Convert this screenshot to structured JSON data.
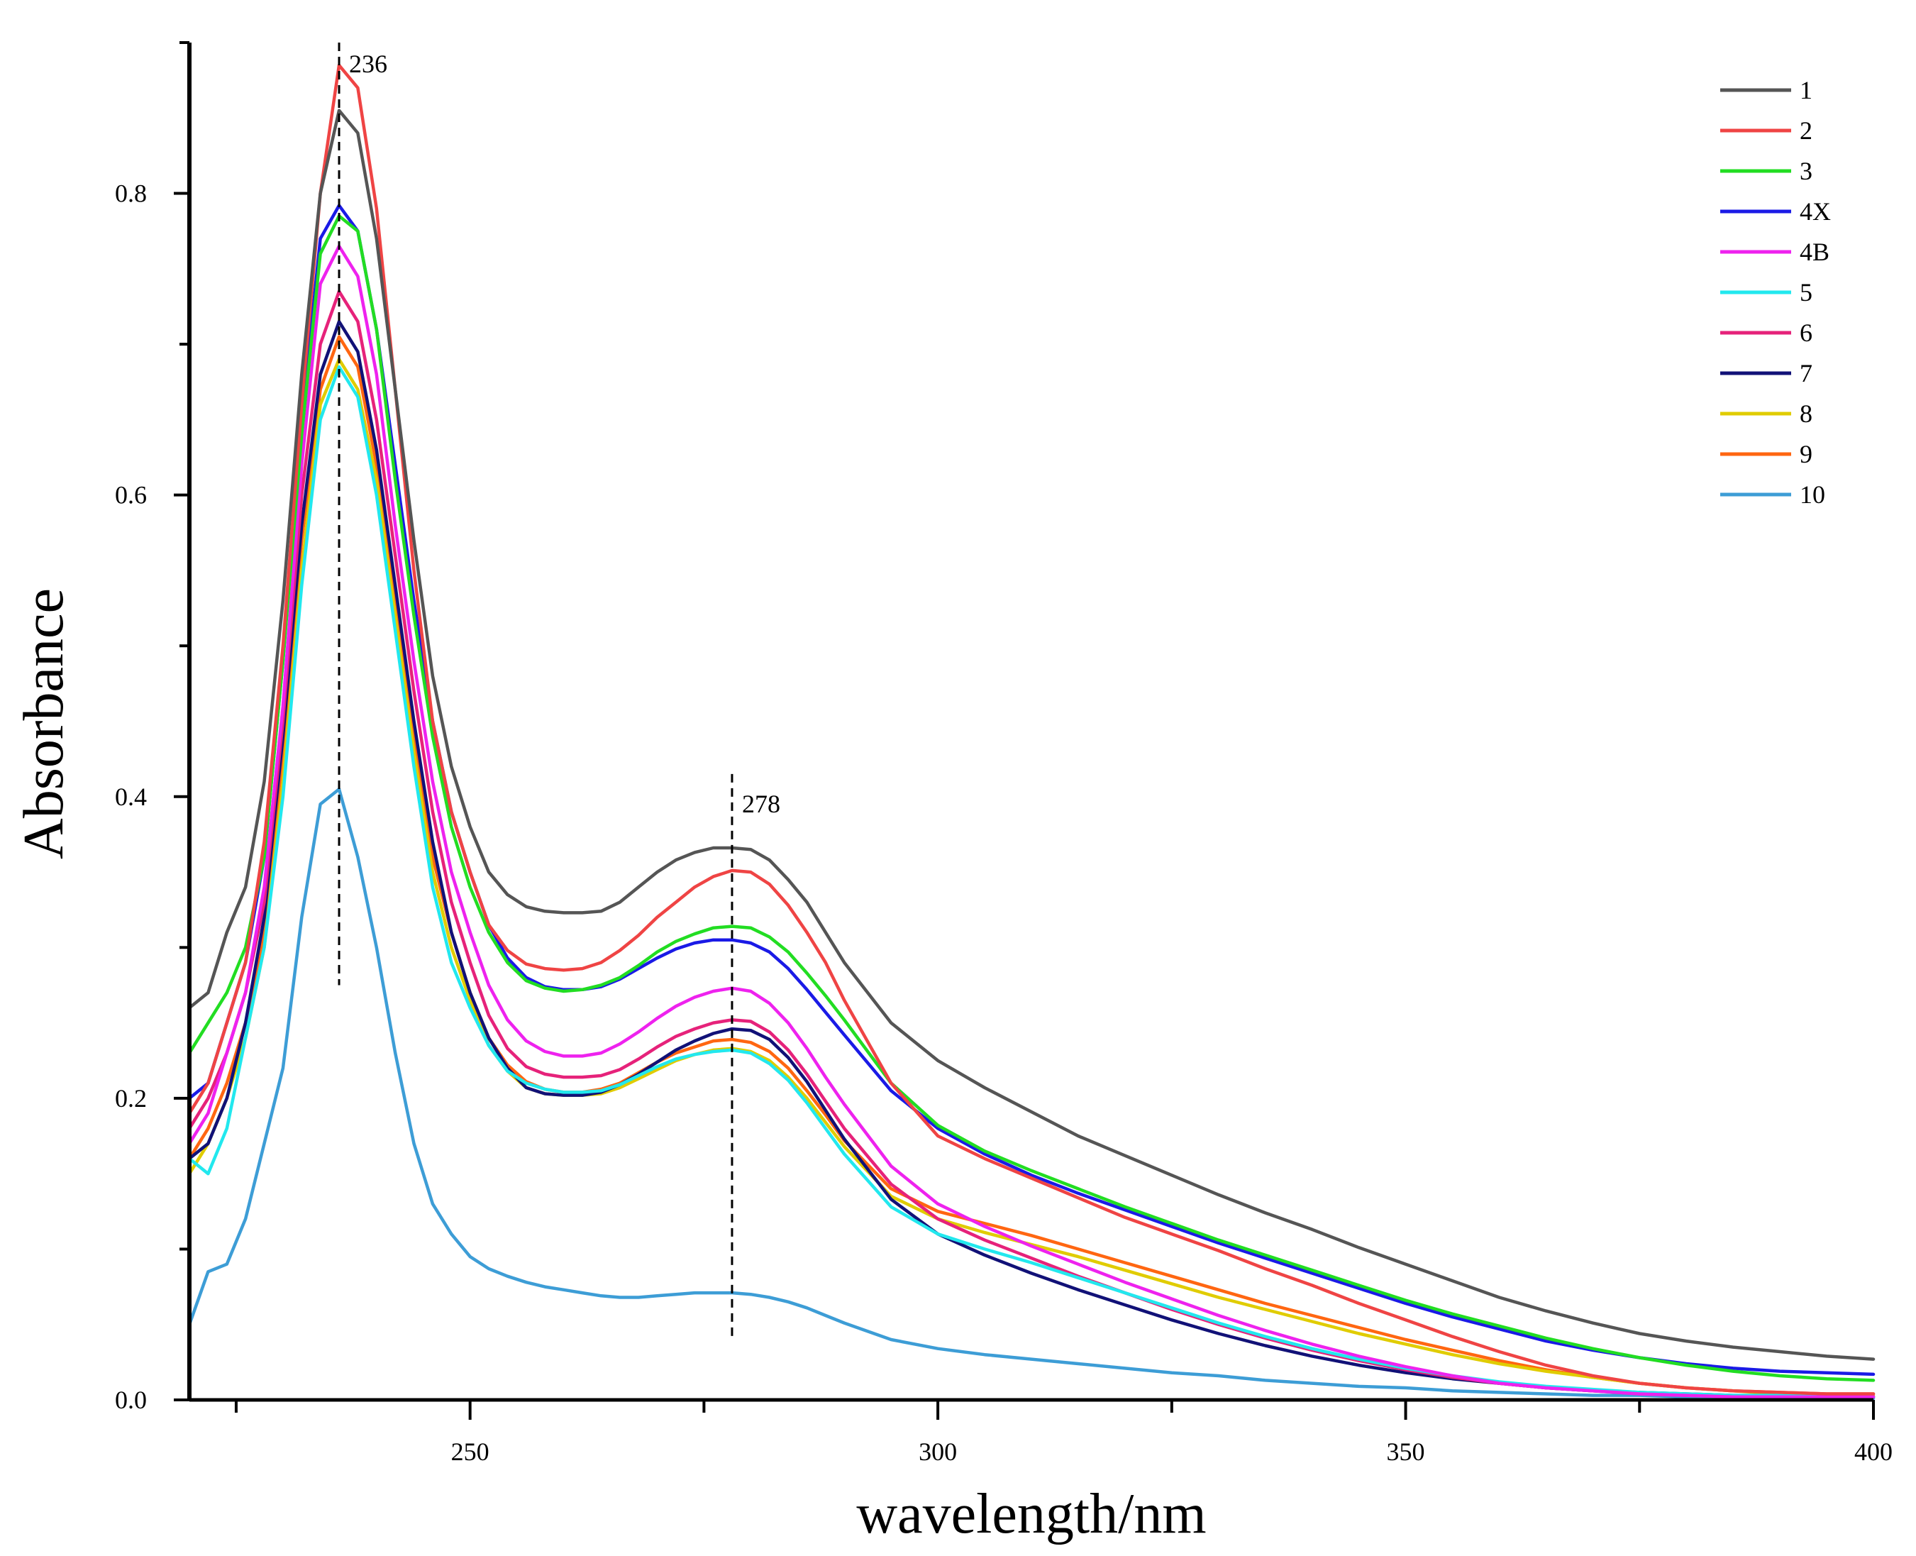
{
  "chart_data": {
    "type": "line",
    "title": "",
    "xlabel": "wavelength/nm",
    "ylabel": "Absorbance",
    "xlim": [
      220,
      400
    ],
    "ylim": [
      0,
      0.9
    ],
    "x_ticks": [
      250,
      300,
      350,
      400
    ],
    "y_ticks": [
      0.0,
      0.2,
      0.4,
      0.6,
      0.8
    ],
    "x_tick_labels": [
      "250",
      "300",
      "350",
      "400"
    ],
    "y_tick_labels": [
      "0.0",
      "0.2",
      "0.4",
      "0.6",
      "0.8"
    ],
    "grid": false,
    "legend_position": "top-right",
    "annotations": [
      {
        "label": "236",
        "x": 236,
        "y_from": 0.275,
        "y_to": 0.9
      },
      {
        "label": "278",
        "x": 278,
        "y_from": 0.04,
        "y_to": 0.415
      }
    ],
    "x": [
      220,
      222,
      224,
      226,
      228,
      230,
      232,
      234,
      236,
      238,
      240,
      242,
      244,
      246,
      248,
      250,
      252,
      254,
      256,
      258,
      260,
      262,
      264,
      266,
      268,
      270,
      272,
      274,
      276,
      278,
      280,
      282,
      284,
      286,
      288,
      290,
      295,
      300,
      305,
      310,
      315,
      320,
      325,
      330,
      335,
      340,
      345,
      350,
      355,
      360,
      365,
      370,
      375,
      380,
      385,
      390,
      395,
      400
    ],
    "series": [
      {
        "name": "1",
        "color": "#555555",
        "values": [
          0.26,
          0.27,
          0.31,
          0.34,
          0.41,
          0.53,
          0.68,
          0.8,
          0.855,
          0.84,
          0.77,
          0.67,
          0.57,
          0.48,
          0.42,
          0.38,
          0.35,
          0.335,
          0.327,
          0.324,
          0.323,
          0.323,
          0.324,
          0.33,
          0.34,
          0.35,
          0.358,
          0.363,
          0.366,
          0.366,
          0.365,
          0.358,
          0.345,
          0.33,
          0.31,
          0.29,
          0.25,
          0.225,
          0.207,
          0.191,
          0.175,
          0.162,
          0.149,
          0.136,
          0.124,
          0.113,
          0.101,
          0.09,
          0.079,
          0.068,
          0.059,
          0.051,
          0.044,
          0.039,
          0.035,
          0.032,
          0.029,
          0.027
        ]
      },
      {
        "name": "2",
        "color": "#ef4444",
        "values": [
          0.19,
          0.21,
          0.25,
          0.29,
          0.37,
          0.5,
          0.66,
          0.8,
          0.885,
          0.87,
          0.79,
          0.67,
          0.55,
          0.45,
          0.39,
          0.35,
          0.315,
          0.298,
          0.289,
          0.286,
          0.285,
          0.286,
          0.29,
          0.298,
          0.308,
          0.32,
          0.33,
          0.34,
          0.347,
          0.351,
          0.35,
          0.342,
          0.328,
          0.31,
          0.29,
          0.265,
          0.21,
          0.175,
          0.16,
          0.147,
          0.134,
          0.121,
          0.11,
          0.099,
          0.087,
          0.076,
          0.064,
          0.053,
          0.042,
          0.032,
          0.023,
          0.016,
          0.011,
          0.008,
          0.006,
          0.005,
          0.004,
          0.004
        ]
      },
      {
        "name": "3",
        "color": "#22dd22",
        "values": [
          0.23,
          0.25,
          0.27,
          0.3,
          0.36,
          0.49,
          0.64,
          0.76,
          0.785,
          0.775,
          0.71,
          0.61,
          0.52,
          0.44,
          0.38,
          0.34,
          0.31,
          0.29,
          0.278,
          0.273,
          0.271,
          0.272,
          0.275,
          0.28,
          0.288,
          0.297,
          0.304,
          0.309,
          0.313,
          0.314,
          0.313,
          0.307,
          0.297,
          0.283,
          0.268,
          0.252,
          0.21,
          0.182,
          0.165,
          0.152,
          0.14,
          0.128,
          0.117,
          0.106,
          0.096,
          0.086,
          0.076,
          0.066,
          0.057,
          0.049,
          0.041,
          0.034,
          0.028,
          0.023,
          0.019,
          0.016,
          0.014,
          0.013
        ]
      },
      {
        "name": "4X",
        "color": "#1a1ae6",
        "values": [
          0.2,
          0.21,
          0.25,
          0.29,
          0.36,
          0.49,
          0.65,
          0.77,
          0.792,
          0.775,
          0.71,
          0.62,
          0.53,
          0.45,
          0.39,
          0.35,
          0.315,
          0.293,
          0.28,
          0.274,
          0.272,
          0.272,
          0.274,
          0.279,
          0.286,
          0.293,
          0.299,
          0.303,
          0.305,
          0.305,
          0.303,
          0.297,
          0.286,
          0.272,
          0.257,
          0.242,
          0.205,
          0.18,
          0.163,
          0.149,
          0.137,
          0.126,
          0.115,
          0.104,
          0.094,
          0.084,
          0.074,
          0.064,
          0.055,
          0.047,
          0.039,
          0.033,
          0.028,
          0.024,
          0.021,
          0.019,
          0.018,
          0.017
        ]
      },
      {
        "name": "4B",
        "color": "#ee22ee",
        "values": [
          0.17,
          0.19,
          0.23,
          0.27,
          0.34,
          0.46,
          0.62,
          0.74,
          0.765,
          0.745,
          0.68,
          0.58,
          0.49,
          0.41,
          0.35,
          0.31,
          0.275,
          0.252,
          0.238,
          0.231,
          0.228,
          0.228,
          0.23,
          0.236,
          0.244,
          0.253,
          0.261,
          0.267,
          0.271,
          0.273,
          0.271,
          0.263,
          0.25,
          0.233,
          0.214,
          0.196,
          0.155,
          0.13,
          0.115,
          0.102,
          0.09,
          0.078,
          0.067,
          0.056,
          0.046,
          0.037,
          0.029,
          0.022,
          0.016,
          0.011,
          0.008,
          0.006,
          0.004,
          0.003,
          0.002,
          0.002,
          0.002,
          0.002
        ]
      },
      {
        "name": "5",
        "color": "#22e8ee",
        "values": [
          0.16,
          0.15,
          0.18,
          0.24,
          0.3,
          0.4,
          0.54,
          0.65,
          0.685,
          0.665,
          0.6,
          0.51,
          0.42,
          0.34,
          0.29,
          0.26,
          0.235,
          0.218,
          0.21,
          0.206,
          0.204,
          0.204,
          0.205,
          0.209,
          0.215,
          0.221,
          0.226,
          0.229,
          0.231,
          0.232,
          0.23,
          0.223,
          0.212,
          0.197,
          0.18,
          0.163,
          0.128,
          0.11,
          0.1,
          0.091,
          0.081,
          0.071,
          0.061,
          0.051,
          0.042,
          0.034,
          0.027,
          0.021,
          0.016,
          0.012,
          0.009,
          0.007,
          0.005,
          0.004,
          0.003,
          0.003,
          0.002,
          0.002
        ]
      },
      {
        "name": "6",
        "color": "#e6227a",
        "values": [
          0.18,
          0.2,
          0.23,
          0.27,
          0.33,
          0.45,
          0.6,
          0.7,
          0.735,
          0.715,
          0.65,
          0.56,
          0.47,
          0.39,
          0.33,
          0.29,
          0.255,
          0.233,
          0.221,
          0.216,
          0.214,
          0.214,
          0.215,
          0.219,
          0.226,
          0.234,
          0.241,
          0.246,
          0.25,
          0.252,
          0.251,
          0.244,
          0.232,
          0.216,
          0.198,
          0.18,
          0.143,
          0.12,
          0.106,
          0.094,
          0.082,
          0.071,
          0.06,
          0.05,
          0.041,
          0.033,
          0.026,
          0.02,
          0.015,
          0.011,
          0.008,
          0.006,
          0.004,
          0.003,
          0.002,
          0.002,
          0.002,
          0.002
        ]
      },
      {
        "name": "7",
        "color": "#111177",
        "values": [
          0.16,
          0.17,
          0.2,
          0.25,
          0.32,
          0.44,
          0.58,
          0.68,
          0.715,
          0.695,
          0.63,
          0.54,
          0.45,
          0.37,
          0.31,
          0.27,
          0.24,
          0.22,
          0.207,
          0.203,
          0.202,
          0.202,
          0.204,
          0.209,
          0.216,
          0.224,
          0.232,
          0.238,
          0.243,
          0.246,
          0.245,
          0.239,
          0.227,
          0.211,
          0.192,
          0.173,
          0.133,
          0.11,
          0.096,
          0.084,
          0.073,
          0.063,
          0.053,
          0.044,
          0.036,
          0.029,
          0.023,
          0.018,
          0.014,
          0.011,
          0.008,
          0.006,
          0.005,
          0.004,
          0.003,
          0.003,
          0.002,
          0.002
        ]
      },
      {
        "name": "8",
        "color": "#e0cc00",
        "values": [
          0.15,
          0.17,
          0.2,
          0.24,
          0.3,
          0.41,
          0.55,
          0.66,
          0.69,
          0.67,
          0.61,
          0.52,
          0.43,
          0.35,
          0.3,
          0.265,
          0.235,
          0.218,
          0.207,
          0.203,
          0.202,
          0.202,
          0.203,
          0.207,
          0.213,
          0.219,
          0.225,
          0.229,
          0.232,
          0.233,
          0.231,
          0.225,
          0.214,
          0.2,
          0.184,
          0.168,
          0.135,
          0.12,
          0.111,
          0.103,
          0.095,
          0.086,
          0.077,
          0.068,
          0.06,
          0.052,
          0.044,
          0.037,
          0.03,
          0.024,
          0.019,
          0.015,
          0.011,
          0.008,
          0.006,
          0.004,
          0.003,
          0.003
        ]
      },
      {
        "name": "9",
        "color": "#ff6611",
        "values": [
          0.16,
          0.18,
          0.21,
          0.25,
          0.31,
          0.43,
          0.57,
          0.67,
          0.705,
          0.685,
          0.62,
          0.53,
          0.44,
          0.36,
          0.31,
          0.27,
          0.24,
          0.222,
          0.211,
          0.206,
          0.204,
          0.204,
          0.206,
          0.21,
          0.217,
          0.224,
          0.23,
          0.234,
          0.238,
          0.239,
          0.237,
          0.231,
          0.22,
          0.205,
          0.189,
          0.172,
          0.14,
          0.125,
          0.117,
          0.109,
          0.1,
          0.091,
          0.082,
          0.073,
          0.064,
          0.056,
          0.048,
          0.04,
          0.033,
          0.026,
          0.02,
          0.015,
          0.011,
          0.008,
          0.006,
          0.005,
          0.004,
          0.004
        ]
      },
      {
        "name": "10",
        "color": "#3d9dd6",
        "values": [
          0.05,
          0.085,
          0.09,
          0.12,
          0.17,
          0.22,
          0.32,
          0.395,
          0.405,
          0.36,
          0.3,
          0.23,
          0.17,
          0.13,
          0.11,
          0.095,
          0.087,
          0.082,
          0.078,
          0.075,
          0.073,
          0.071,
          0.069,
          0.068,
          0.068,
          0.069,
          0.07,
          0.071,
          0.071,
          0.071,
          0.07,
          0.068,
          0.065,
          0.061,
          0.056,
          0.051,
          0.04,
          0.034,
          0.03,
          0.027,
          0.024,
          0.021,
          0.018,
          0.016,
          0.013,
          0.011,
          0.009,
          0.008,
          0.006,
          0.005,
          0.004,
          0.003,
          0.003,
          0.002,
          0.002,
          0.001,
          0.001,
          0.001
        ]
      }
    ]
  }
}
